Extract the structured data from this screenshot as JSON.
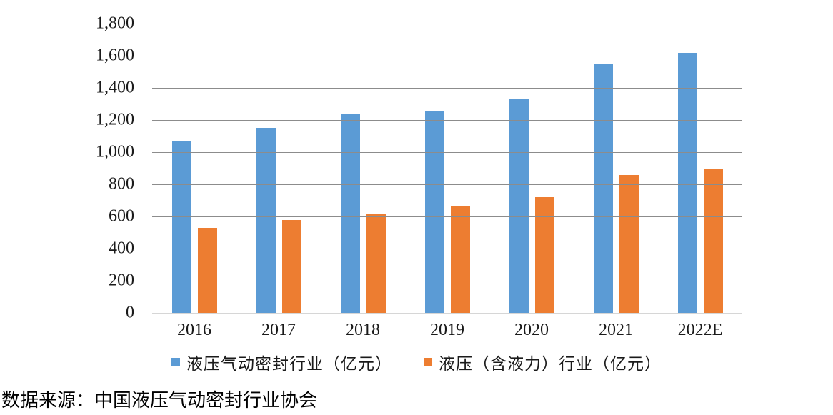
{
  "chart_data": {
    "type": "bar",
    "title": "",
    "categories": [
      "2016",
      "2017",
      "2018",
      "2019",
      "2020",
      "2021",
      "2022E"
    ],
    "series": [
      {
        "name": "液压气动密封行业（亿元）",
        "color": "#5B9BD5",
        "values": [
          1070,
          1150,
          1235,
          1260,
          1330,
          1550,
          1620
        ]
      },
      {
        "name": "液压（含液力）行业（亿元）",
        "color": "#ED7D31",
        "values": [
          530,
          580,
          620,
          665,
          720,
          860,
          900
        ]
      }
    ],
    "xlabel": "",
    "ylabel": "",
    "ylim": [
      0,
      1800
    ],
    "ytick_step": 200,
    "ytick_labels": [
      "0",
      "200",
      "400",
      "600",
      "800",
      "1,000",
      "1,200",
      "1,400",
      "1,600",
      "1,800"
    ],
    "grid": true,
    "legend_position": "bottom"
  },
  "source_note": "数据来源：中国液压气动密封行业协会"
}
